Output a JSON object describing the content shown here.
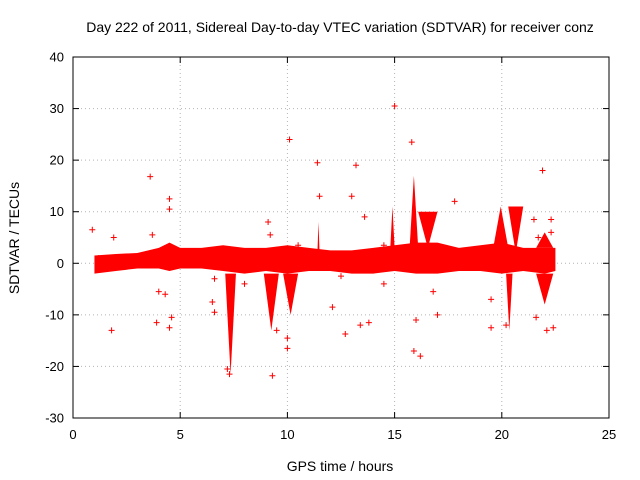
{
  "chart_data": {
    "type": "scatter",
    "title": "Day 222 of 2011, Sidereal Day-to-day VTEC variation (SDTVAR) for receiver conz",
    "xlabel": "GPS time / hours",
    "ylabel": "SDTVAR / TECUs",
    "xlim": [
      0,
      25
    ],
    "ylim": [
      -30,
      40
    ],
    "xticks": [
      0,
      5,
      10,
      15,
      20,
      25
    ],
    "yticks": [
      -30,
      -20,
      -10,
      0,
      10,
      20,
      30,
      40
    ],
    "grid": true,
    "marker": "+",
    "color": "#ff0000",
    "x_range_observed": [
      1.0,
      22.5
    ],
    "band": [
      [
        1.0,
        -2.0,
        1.5
      ],
      [
        2.0,
        -1.5,
        1.8
      ],
      [
        3.0,
        -1.0,
        2.0
      ],
      [
        4.0,
        -1.0,
        3.0
      ],
      [
        4.5,
        -1.5,
        4.0
      ],
      [
        5.0,
        -1.0,
        3.0
      ],
      [
        6.0,
        -1.0,
        3.0
      ],
      [
        7.0,
        -1.5,
        3.5
      ],
      [
        8.0,
        -2.0,
        3.0
      ],
      [
        9.0,
        -1.5,
        3.0
      ],
      [
        10.0,
        -2.0,
        3.5
      ],
      [
        11.0,
        -1.5,
        3.0
      ],
      [
        12.0,
        -1.5,
        2.5
      ],
      [
        13.0,
        -2.0,
        2.5
      ],
      [
        14.0,
        -2.0,
        3.0
      ],
      [
        15.0,
        -1.5,
        3.5
      ],
      [
        16.0,
        -2.0,
        4.0
      ],
      [
        17.0,
        -2.0,
        4.0
      ],
      [
        18.0,
        -1.5,
        3.0
      ],
      [
        19.0,
        -1.5,
        3.5
      ],
      [
        20.0,
        -2.0,
        4.0
      ],
      [
        21.0,
        -1.5,
        3.0
      ],
      [
        22.0,
        -2.0,
        3.0
      ],
      [
        22.5,
        -1.5,
        3.0
      ]
    ],
    "features": [
      {
        "x_start": 7.1,
        "x_end": 7.6,
        "y_start": -2,
        "y_end": -21.5
      },
      {
        "x_start": 8.9,
        "x_end": 9.6,
        "y_start": -2,
        "y_end": -13
      },
      {
        "x_start": 9.8,
        "x_end": 10.5,
        "y_start": -2,
        "y_end": -10
      },
      {
        "x_start": 15.7,
        "x_end": 16.1,
        "y_start": 3,
        "y_end": 17
      },
      {
        "x_start": 16.1,
        "x_end": 17.0,
        "y_start": 10,
        "y_end": 3
      },
      {
        "x_start": 19.6,
        "x_end": 20.3,
        "y_start": 3,
        "y_end": 11
      },
      {
        "x_start": 20.3,
        "x_end": 21.0,
        "y_start": 11,
        "y_end": 2
      },
      {
        "x_start": 20.2,
        "x_end": 20.5,
        "y_start": -2,
        "y_end": -13
      },
      {
        "x_start": 21.6,
        "x_end": 22.4,
        "y_start": -2,
        "y_end": -8
      },
      {
        "x_start": 21.6,
        "x_end": 22.4,
        "y_start": 3,
        "y_end": 6
      },
      {
        "x_start": 11.4,
        "x_end": 11.5,
        "y_start": 2,
        "y_end": 8
      },
      {
        "x_start": 14.8,
        "x_end": 15.0,
        "y_start": 3,
        "y_end": 11
      }
    ],
    "outliers": [
      [
        0.9,
        6.5
      ],
      [
        1.2,
        1.0
      ],
      [
        1.8,
        -13.0
      ],
      [
        1.9,
        5.0
      ],
      [
        3.6,
        16.8
      ],
      [
        3.7,
        5.5
      ],
      [
        3.9,
        -11.5
      ],
      [
        4.0,
        -5.5
      ],
      [
        4.3,
        -6.0
      ],
      [
        4.5,
        12.5
      ],
      [
        4.5,
        10.5
      ],
      [
        4.6,
        -10.5
      ],
      [
        4.5,
        -12.5
      ],
      [
        6.5,
        -7.5
      ],
      [
        6.6,
        -9.5
      ],
      [
        6.6,
        -3.0
      ],
      [
        7.2,
        -20.5
      ],
      [
        7.3,
        -21.5
      ],
      [
        9.3,
        -21.8
      ],
      [
        9.1,
        8.0
      ],
      [
        9.5,
        -13.0
      ],
      [
        10.0,
        -14.5
      ],
      [
        10.1,
        24.0
      ],
      [
        10.0,
        -16.5
      ],
      [
        11.4,
        19.5
      ],
      [
        11.5,
        13.0
      ],
      [
        12.1,
        -8.5
      ],
      [
        12.7,
        -13.7
      ],
      [
        13.0,
        13.0
      ],
      [
        13.2,
        19.0
      ],
      [
        13.4,
        -12.0
      ],
      [
        13.6,
        9.0
      ],
      [
        13.8,
        -11.5
      ],
      [
        14.5,
        -4.0
      ],
      [
        15.0,
        30.5
      ],
      [
        15.8,
        23.5
      ],
      [
        15.9,
        -17.0
      ],
      [
        16.0,
        -11.0
      ],
      [
        16.2,
        -18.0
      ],
      [
        16.8,
        -5.5
      ],
      [
        17.0,
        -10.0
      ],
      [
        17.8,
        12.0
      ],
      [
        19.5,
        -12.5
      ],
      [
        19.5,
        -7.0
      ],
      [
        20.2,
        -12.0
      ],
      [
        21.5,
        8.5
      ],
      [
        21.6,
        -10.5
      ],
      [
        21.7,
        5.0
      ],
      [
        21.9,
        18.0
      ],
      [
        22.0,
        -4.0
      ],
      [
        22.1,
        -13.0
      ],
      [
        22.3,
        8.5
      ],
      [
        22.4,
        -12.5
      ],
      [
        22.3,
        6.0
      ],
      [
        13.6,
        0.5
      ],
      [
        12.5,
        -2.5
      ],
      [
        14.5,
        3.5
      ],
      [
        8.0,
        -4.0
      ],
      [
        9.2,
        5.5
      ],
      [
        10.5,
        3.5
      ]
    ]
  }
}
